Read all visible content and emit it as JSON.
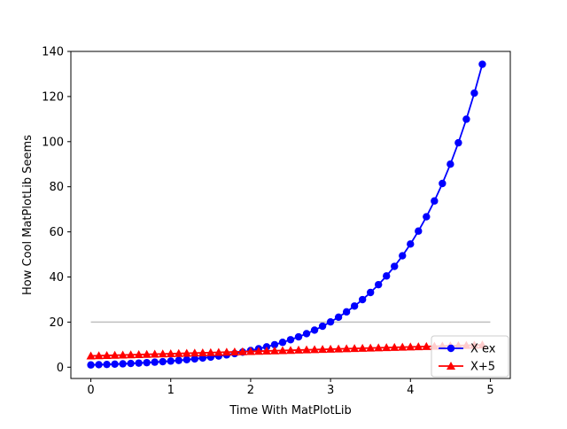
{
  "chart_data": {
    "type": "line",
    "title": "",
    "xlabel": "Time With MatPlotLib",
    "ylabel": "How Cool MatPlotLib Seems",
    "xlim": [
      -0.25,
      5.25
    ],
    "ylim": [
      -5,
      140
    ],
    "xticks": [
      0,
      1,
      2,
      3,
      4,
      5
    ],
    "yticks": [
      0,
      20,
      40,
      60,
      80,
      100,
      120,
      140
    ],
    "grid": false,
    "legend": "lower-right",
    "x_step": 0.1,
    "x_start": 0.0,
    "point_count": 50,
    "series": [
      {
        "name": "X ex",
        "function": "exp(x)",
        "color": "#0000ff",
        "marker": "circle"
      },
      {
        "name": "X+5",
        "function": "x+5",
        "color": "#ff0000",
        "marker": "triangle"
      }
    ],
    "reference_line": {
      "y": 20,
      "x_from": 0,
      "x_to": 5,
      "color": "#bfbfbf"
    }
  }
}
